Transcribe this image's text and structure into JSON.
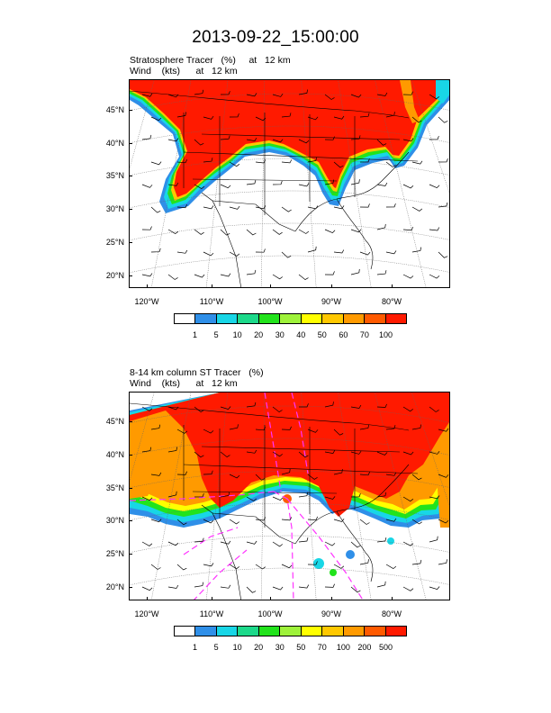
{
  "title": "2013-09-22_15:00:00",
  "colors": {
    "tracer_red": "#ff1a00",
    "orange_red": "#ff5a00",
    "orange": "#ff9a00",
    "gold": "#ffc800",
    "yellow": "#ffff00",
    "yellow_green": "#9ef23a",
    "green": "#22e31c",
    "sea_green": "#1cd98a",
    "cyan": "#18d6e6",
    "blue": "#2f8fe8",
    "white": "#ffffff",
    "wind_barb": "#000000",
    "overlay_dash": "#ff33ff"
  },
  "panels": [
    {
      "title_line1": "Stratosphere Tracer   (%)     at   12 km",
      "title_line2": "Wind    (kts)      at   12 km",
      "lat_labels": [
        "45°N",
        "40°N",
        "35°N",
        "30°N",
        "25°N",
        "20°N"
      ],
      "lon_labels": [
        "120°W",
        "110°W",
        "100°W",
        "90°W",
        "80°W"
      ],
      "colorbar": {
        "labels": [
          "1",
          "5",
          "10",
          "20",
          "30",
          "40",
          "50",
          "60",
          "70",
          "100"
        ],
        "colors": [
          "#ffffff",
          "#2f8fe8",
          "#18d6e6",
          "#1cd98a",
          "#22e31c",
          "#9ef23a",
          "#ffff00",
          "#ffc800",
          "#ff9a00",
          "#ff5a00",
          "#ff1a00"
        ]
      }
    },
    {
      "title_line1": "8-14 km column ST Tracer   (%)",
      "title_line2": "Wind    (kts)      at   12 km",
      "lat_labels": [
        "45°N",
        "40°N",
        "35°N",
        "30°N",
        "25°N",
        "20°N"
      ],
      "lon_labels": [
        "120°W",
        "110°W",
        "100°W",
        "90°W",
        "80°W"
      ],
      "colorbar": {
        "labels": [
          "1",
          "5",
          "10",
          "20",
          "30",
          "50",
          "70",
          "100",
          "200",
          "500"
        ],
        "colors": [
          "#ffffff",
          "#2f8fe8",
          "#18d6e6",
          "#1cd98a",
          "#22e31c",
          "#9ef23a",
          "#ffff00",
          "#ffc800",
          "#ff9a00",
          "#ff5a00",
          "#ff1a00"
        ]
      }
    }
  ]
}
